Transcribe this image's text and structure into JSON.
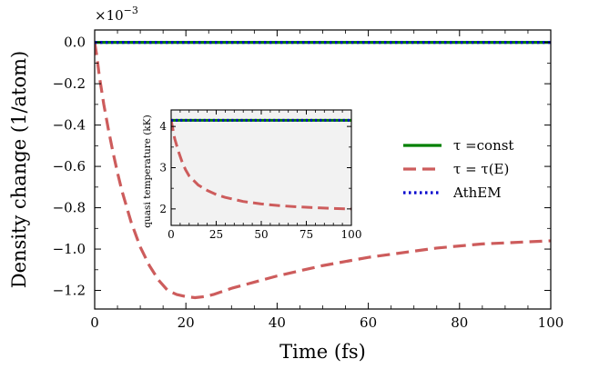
{
  "chart_data": {
    "type": "line",
    "xlabel": "Time (fs)",
    "ylabel": "Density change (1/atom)",
    "y_multiplier": {
      "base": "×10",
      "exponent": "−3"
    },
    "xlim": [
      0,
      100
    ],
    "ylim": [
      -1.29,
      0.06
    ],
    "x_ticks": [
      0,
      20,
      40,
      60,
      80,
      100
    ],
    "x_tick_labels": [
      "0",
      "20",
      "40",
      "60",
      "80",
      "100"
    ],
    "y_ticks": [
      0.0,
      -0.2,
      -0.4,
      -0.6,
      -0.8,
      -1.0,
      -1.2
    ],
    "y_tick_labels": [
      "0.0",
      "−0.2",
      "−0.4",
      "−0.6",
      "−0.8",
      "−1.0",
      "−1.2"
    ],
    "legend_position": "center-right",
    "series": [
      {
        "name": "τ =const",
        "color": "#008000",
        "style": "solid",
        "x": [
          0,
          100
        ],
        "y": [
          0.0,
          0.0
        ]
      },
      {
        "name": "τ = τ(E)",
        "color": "#cd5c5c",
        "style": "dashed",
        "x": [
          0,
          0.5,
          1,
          2,
          3,
          4,
          5,
          6,
          8,
          10,
          12,
          14,
          16,
          18,
          20,
          22,
          24,
          26,
          28,
          30,
          35,
          40,
          45,
          50,
          55,
          60,
          65,
          70,
          75,
          80,
          85,
          90,
          95,
          100
        ],
        "y": [
          0.0,
          -0.07,
          -0.16,
          -0.3,
          -0.42,
          -0.53,
          -0.63,
          -0.72,
          -0.87,
          -0.99,
          -1.08,
          -1.15,
          -1.2,
          -1.22,
          -1.23,
          -1.235,
          -1.23,
          -1.22,
          -1.205,
          -1.19,
          -1.16,
          -1.13,
          -1.105,
          -1.08,
          -1.06,
          -1.04,
          -1.025,
          -1.01,
          -0.995,
          -0.985,
          -0.975,
          -0.97,
          -0.965,
          -0.96
        ]
      },
      {
        "name": "AthEM",
        "color": "#0000cd",
        "style": "dotted",
        "x": [
          0,
          100
        ],
        "y": [
          0.0,
          0.0
        ]
      }
    ],
    "inset": {
      "type": "line",
      "ylabel": "quasi temperature (kK)",
      "xlim": [
        0,
        100
      ],
      "ylim": [
        1.6,
        4.4
      ],
      "x_ticks": [
        0,
        25,
        50,
        75,
        100
      ],
      "x_tick_labels": [
        "0",
        "25",
        "50",
        "75",
        "100"
      ],
      "y_ticks": [
        2,
        3,
        4
      ],
      "y_tick_labels": [
        "2",
        "3",
        "4"
      ],
      "background": "#f2f2f2",
      "series": [
        {
          "name": "τ =const",
          "color": "#008000",
          "style": "solid",
          "x": [
            0,
            100
          ],
          "y": [
            4.15,
            4.15
          ]
        },
        {
          "name": "τ = τ(E)",
          "color": "#cd5c5c",
          "style": "dashed",
          "x": [
            0,
            2,
            4,
            6,
            8,
            10,
            15,
            20,
            25,
            30,
            40,
            50,
            60,
            70,
            80,
            90,
            100
          ],
          "y": [
            4.15,
            3.7,
            3.4,
            3.15,
            2.95,
            2.8,
            2.58,
            2.45,
            2.35,
            2.28,
            2.18,
            2.12,
            2.08,
            2.05,
            2.03,
            2.01,
            2.0
          ]
        },
        {
          "name": "AthEM",
          "color": "#0000cd",
          "style": "dotted",
          "x": [
            0,
            100
          ],
          "y": [
            4.15,
            4.15
          ]
        }
      ]
    }
  }
}
